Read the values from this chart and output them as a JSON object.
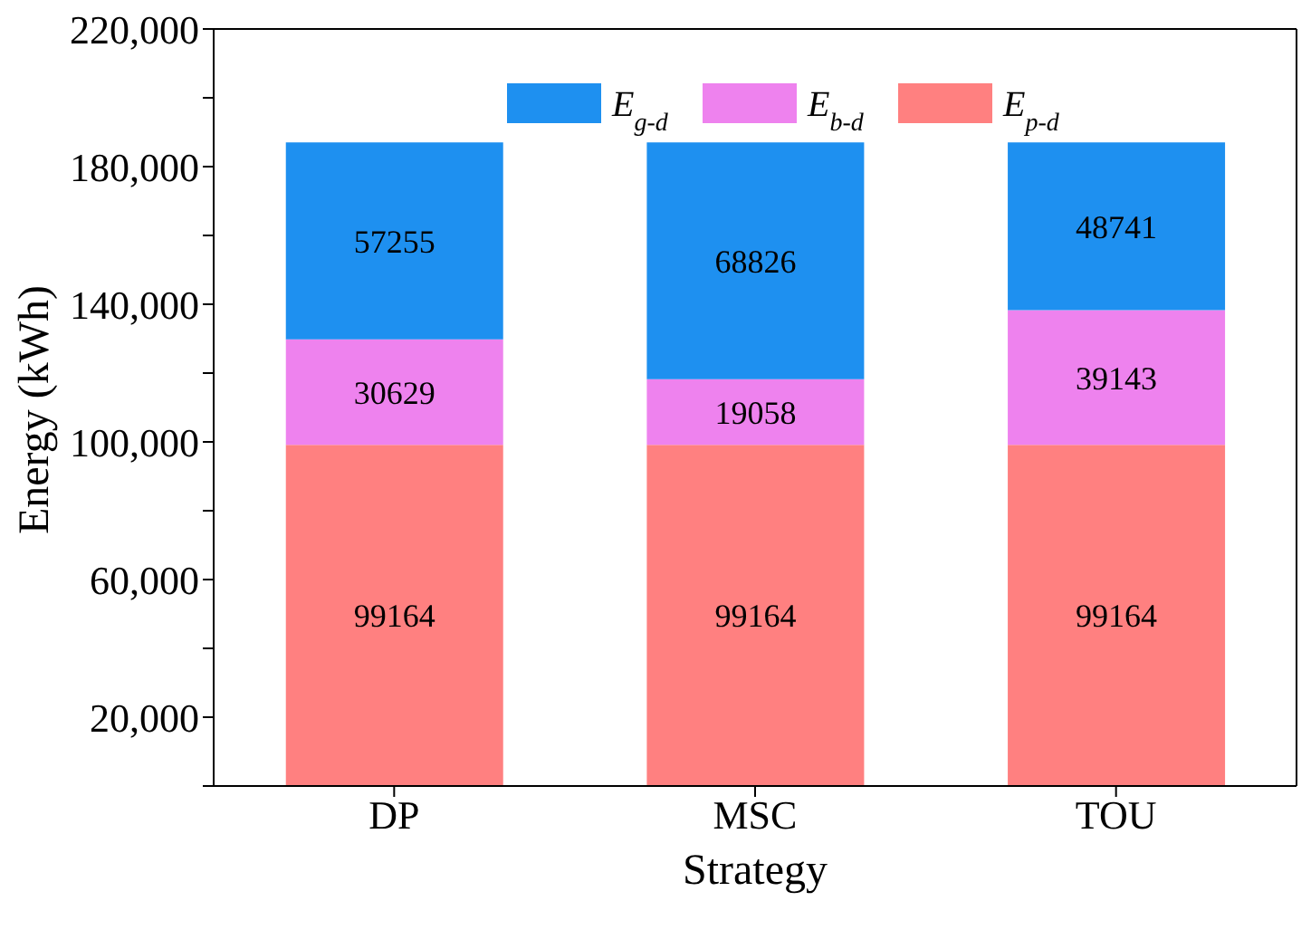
{
  "chart_data": {
    "type": "bar",
    "stacked": true,
    "xlabel": "Strategy",
    "ylabel": "Energy (kWh)",
    "categories": [
      "DP",
      "MSC",
      "TOU"
    ],
    "series": [
      {
        "name": "E$_{p-d}$",
        "color": "#ff8080",
        "values": [
          99164,
          99164,
          99164
        ]
      },
      {
        "name": "E$_{b-d}$",
        "color": "#ee82ee",
        "values": [
          30629,
          19058,
          39143
        ]
      },
      {
        "name": "E$_{g-d}$",
        "color": "#1e90f0",
        "values": [
          57255,
          68826,
          48741
        ]
      }
    ],
    "ylim": [
      0,
      220000
    ],
    "yticks": [
      {
        "value": 0,
        "label": null
      },
      {
        "value": 20000,
        "label": "20,000"
      },
      {
        "value": 40000,
        "label": null
      },
      {
        "value": 60000,
        "label": "60,000"
      },
      {
        "value": 80000,
        "label": null
      },
      {
        "value": 100000,
        "label": "100,000"
      },
      {
        "value": 120000,
        "label": null
      },
      {
        "value": 140000,
        "label": "140,000"
      },
      {
        "value": 160000,
        "label": null
      },
      {
        "value": 180000,
        "label": "180,000"
      },
      {
        "value": 200000,
        "label": null
      },
      {
        "value": 220000,
        "label": "220,000"
      }
    ],
    "data_labels": true,
    "legend": "top",
    "grid": false
  }
}
